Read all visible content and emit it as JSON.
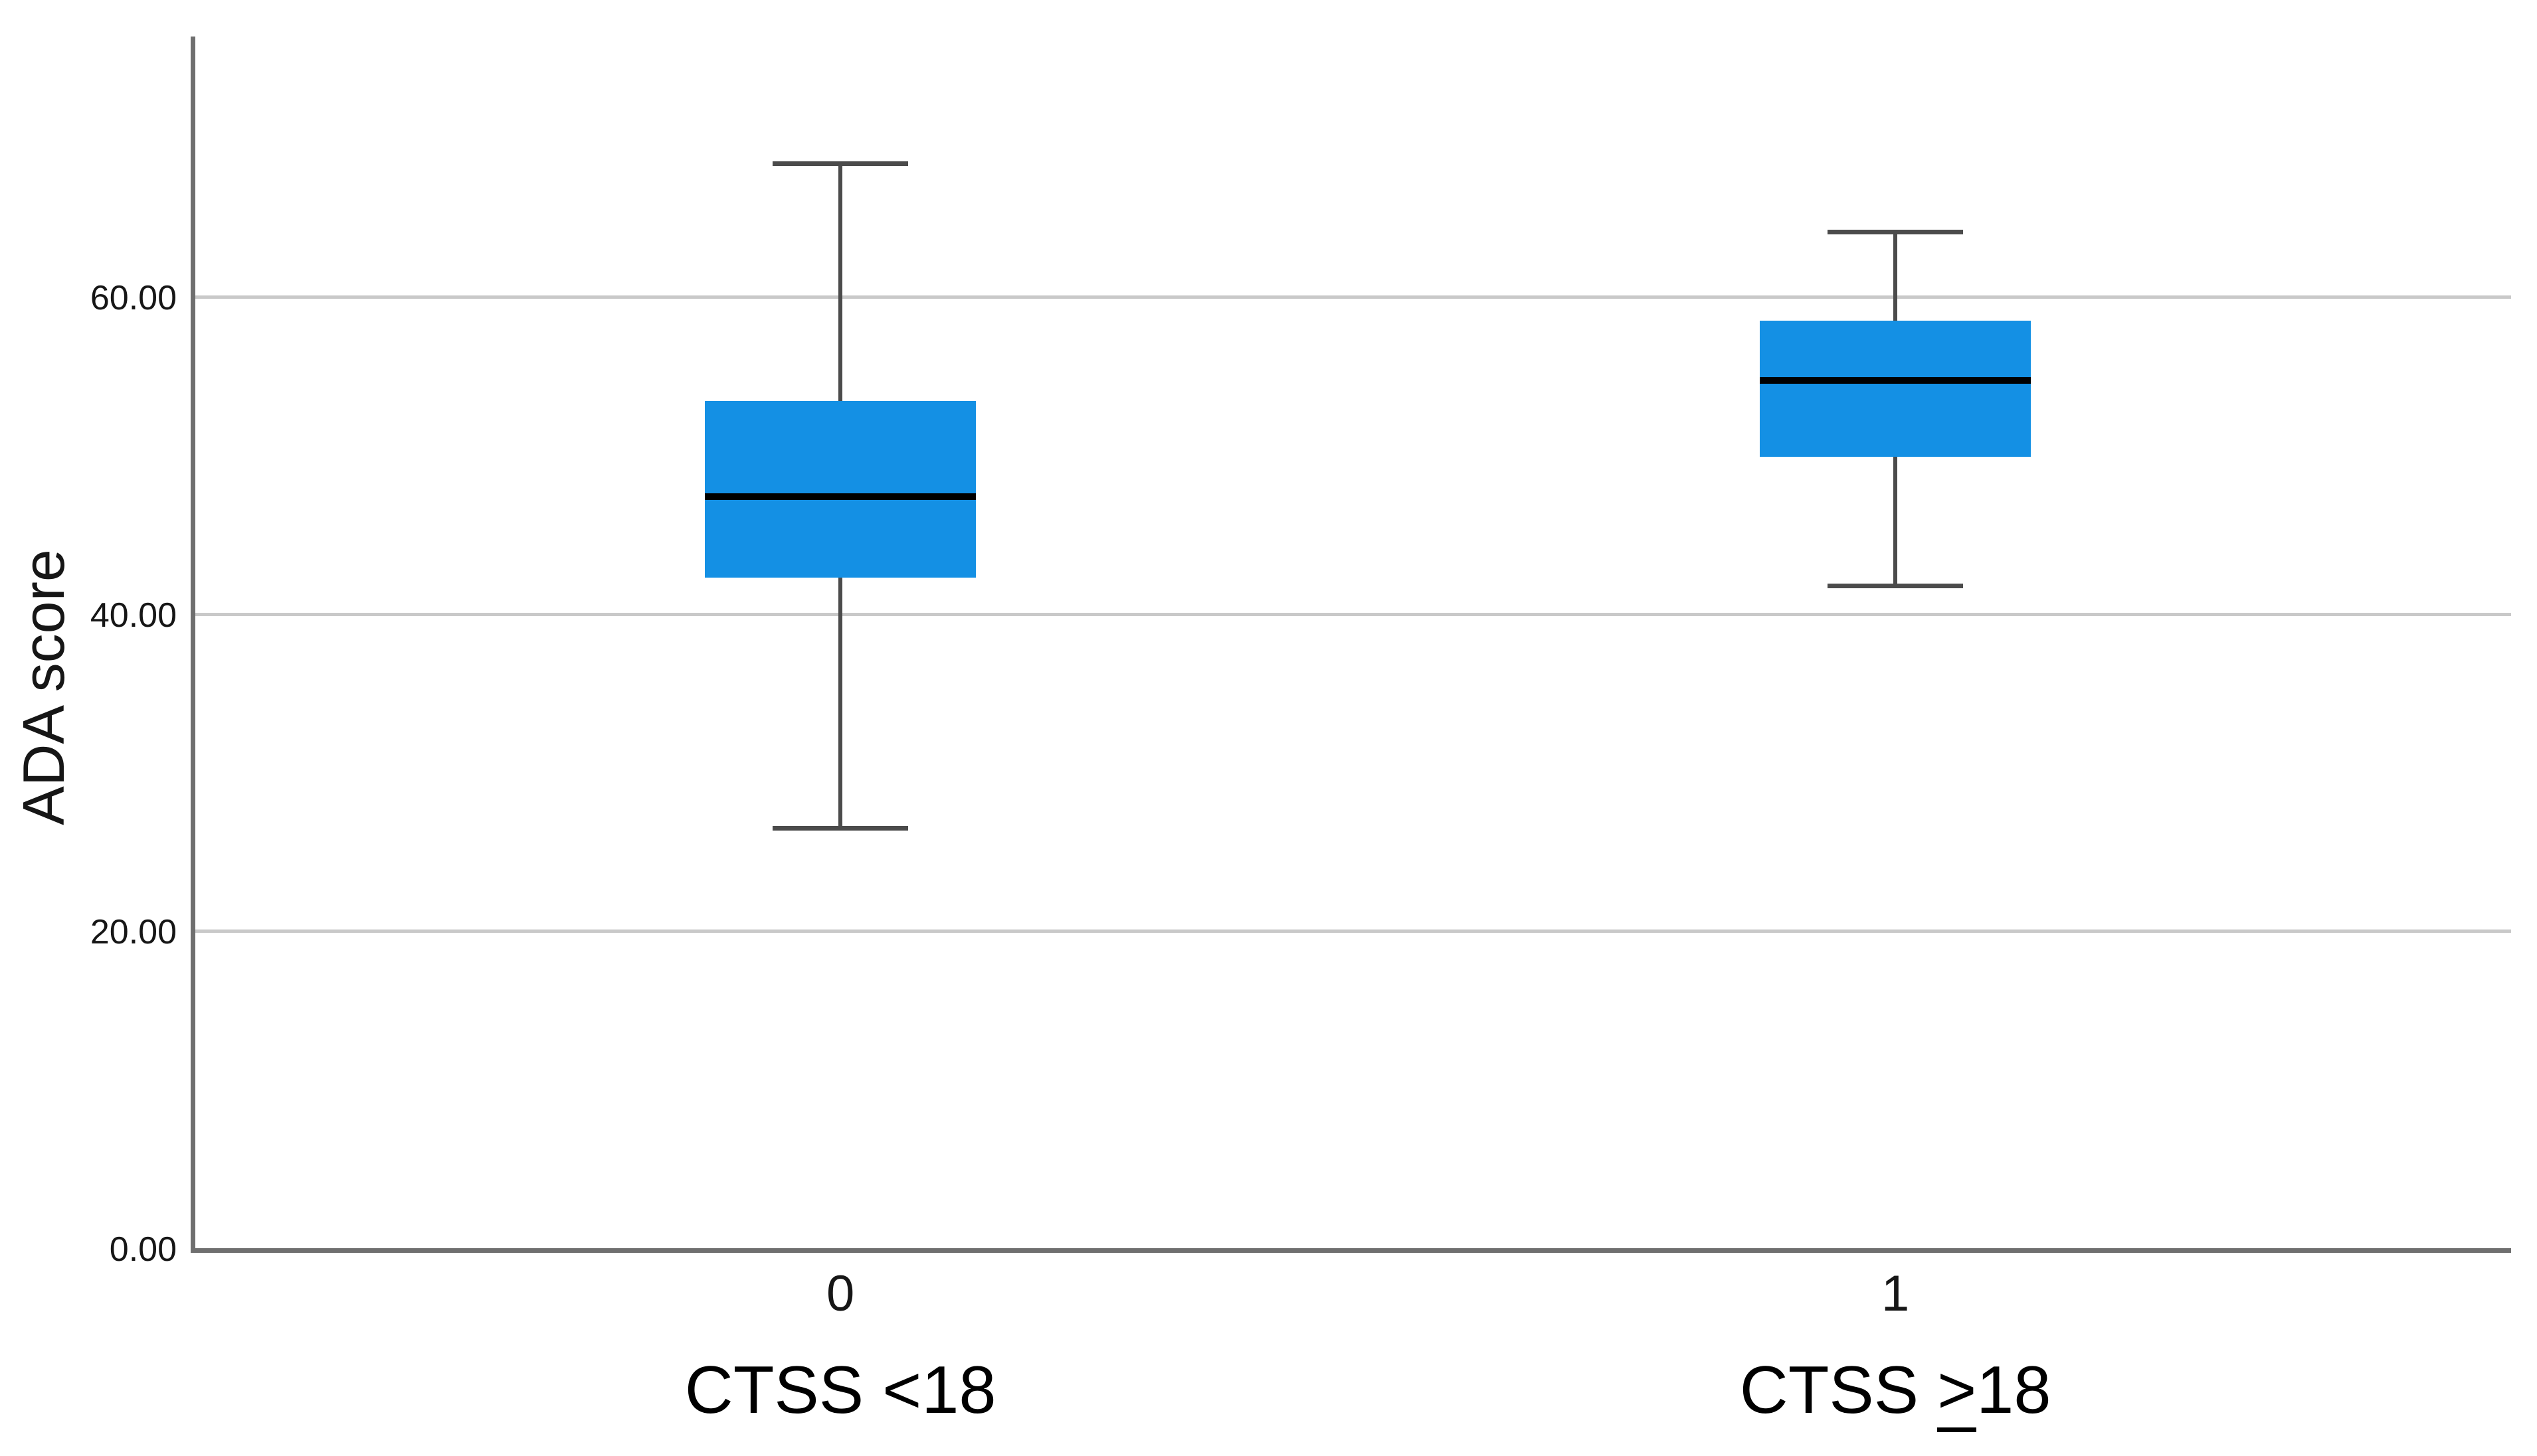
{
  "chart_data": {
    "type": "boxplot",
    "title": "",
    "xlabel": "",
    "ylabel": "ADA score",
    "ylim": [
      0,
      76.4
    ],
    "yticks": [
      0,
      20,
      40,
      60
    ],
    "ytick_labels": [
      "0.00",
      "20.00",
      "40.00",
      "60.00"
    ],
    "grid": "horizontal",
    "legend": "none",
    "colors": {
      "box_fill": "#1490e4",
      "median": "#000000",
      "whisker": "#4b4b4b",
      "axis": "#6f6f6f",
      "gridline": "#c9c9c9",
      "text": "#161616",
      "background": "#ffffff"
    },
    "groups": [
      {
        "tick": "0",
        "label": "CTSS <18",
        "label_parts": [
          "CTSS ",
          "<",
          "18"
        ],
        "symbol_underline": false,
        "stats": {
          "min": 26.5,
          "q1": 42.3,
          "median": 47.4,
          "q3": 53.4,
          "max": 68.4
        }
      },
      {
        "tick": "1",
        "label": "CTSS ≥18",
        "label_parts": [
          "CTSS ",
          ">",
          "18"
        ],
        "symbol_underline": true,
        "stats": {
          "min": 41.8,
          "q1": 49.9,
          "median": 54.7,
          "q3": 58.5,
          "max": 64.1
        }
      }
    ]
  }
}
